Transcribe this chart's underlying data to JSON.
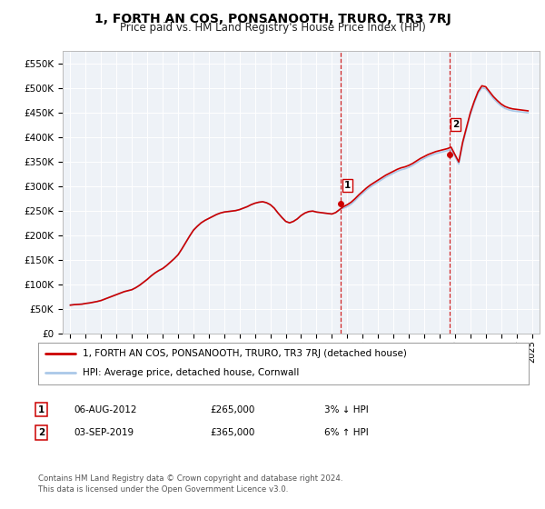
{
  "title": "1, FORTH AN COS, PONSANOOTH, TRURO, TR3 7RJ",
  "subtitle": "Price paid vs. HM Land Registry's House Price Index (HPI)",
  "ylabel_ticks": [
    "£0",
    "£50K",
    "£100K",
    "£150K",
    "£200K",
    "£250K",
    "£300K",
    "£350K",
    "£400K",
    "£450K",
    "£500K",
    "£550K"
  ],
  "ytick_values": [
    0,
    50000,
    100000,
    150000,
    200000,
    250000,
    300000,
    350000,
    400000,
    450000,
    500000,
    550000
  ],
  "ylim": [
    0,
    575000
  ],
  "xlim_start": 1994.5,
  "xlim_end": 2025.5,
  "xticks": [
    1995,
    1996,
    1997,
    1998,
    1999,
    2000,
    2001,
    2002,
    2003,
    2004,
    2005,
    2006,
    2007,
    2008,
    2009,
    2010,
    2011,
    2012,
    2013,
    2014,
    2015,
    2016,
    2017,
    2018,
    2019,
    2020,
    2021,
    2022,
    2023,
    2024,
    2025
  ],
  "hpi_color": "#aac8e8",
  "price_color": "#cc0000",
  "marker_color": "#cc0000",
  "bg_color": "#eef2f7",
  "grid_color": "#ffffff",
  "transaction1_x": 2012.58,
  "transaction1_y": 265000,
  "transaction2_x": 2019.67,
  "transaction2_y": 365000,
  "legend_line1": "1, FORTH AN COS, PONSANOOTH, TRURO, TR3 7RJ (detached house)",
  "legend_line2": "HPI: Average price, detached house, Cornwall",
  "transaction1_date": "06-AUG-2012",
  "transaction1_price": "£265,000",
  "transaction1_hpi": "3% ↓ HPI",
  "transaction2_date": "03-SEP-2019",
  "transaction2_price": "£365,000",
  "transaction2_hpi": "6% ↑ HPI",
  "footer": "Contains HM Land Registry data © Crown copyright and database right 2024.\nThis data is licensed under the Open Government Licence v3.0.",
  "hpi_data_x": [
    1995.0,
    1995.25,
    1995.5,
    1995.75,
    1996.0,
    1996.25,
    1996.5,
    1996.75,
    1997.0,
    1997.25,
    1997.5,
    1997.75,
    1998.0,
    1998.25,
    1998.5,
    1998.75,
    1999.0,
    1999.25,
    1999.5,
    1999.75,
    2000.0,
    2000.25,
    2000.5,
    2000.75,
    2001.0,
    2001.25,
    2001.5,
    2001.75,
    2002.0,
    2002.25,
    2002.5,
    2002.75,
    2003.0,
    2003.25,
    2003.5,
    2003.75,
    2004.0,
    2004.25,
    2004.5,
    2004.75,
    2005.0,
    2005.25,
    2005.5,
    2005.75,
    2006.0,
    2006.25,
    2006.5,
    2006.75,
    2007.0,
    2007.25,
    2007.5,
    2007.75,
    2008.0,
    2008.25,
    2008.5,
    2008.75,
    2009.0,
    2009.25,
    2009.5,
    2009.75,
    2010.0,
    2010.25,
    2010.5,
    2010.75,
    2011.0,
    2011.25,
    2011.5,
    2011.75,
    2012.0,
    2012.25,
    2012.5,
    2012.75,
    2013.0,
    2013.25,
    2013.5,
    2013.75,
    2014.0,
    2014.25,
    2014.5,
    2014.75,
    2015.0,
    2015.25,
    2015.5,
    2015.75,
    2016.0,
    2016.25,
    2016.5,
    2016.75,
    2017.0,
    2017.25,
    2017.5,
    2017.75,
    2018.0,
    2018.25,
    2018.5,
    2018.75,
    2019.0,
    2019.25,
    2019.5,
    2019.75,
    2020.0,
    2020.25,
    2020.5,
    2020.75,
    2021.0,
    2021.25,
    2021.5,
    2021.75,
    2022.0,
    2022.25,
    2022.5,
    2022.75,
    2023.0,
    2023.25,
    2023.5,
    2023.75,
    2024.0,
    2024.25,
    2024.5,
    2024.75
  ],
  "hpi_data_y": [
    58000,
    59000,
    59500,
    60000,
    61000,
    62000,
    63500,
    65000,
    67000,
    70000,
    73000,
    76000,
    79000,
    82000,
    85000,
    87000,
    89000,
    93000,
    98000,
    104000,
    110000,
    117000,
    123000,
    128000,
    132000,
    138000,
    145000,
    152000,
    160000,
    172000,
    185000,
    198000,
    210000,
    218000,
    225000,
    230000,
    234000,
    238000,
    242000,
    245000,
    247000,
    248000,
    249000,
    250000,
    252000,
    255000,
    258000,
    262000,
    265000,
    267000,
    268000,
    266000,
    262000,
    255000,
    245000,
    236000,
    228000,
    225000,
    228000,
    233000,
    240000,
    245000,
    248000,
    249000,
    247000,
    246000,
    245000,
    244000,
    243000,
    246000,
    252000,
    255000,
    258000,
    263000,
    270000,
    278000,
    285000,
    292000,
    298000,
    303000,
    308000,
    313000,
    318000,
    322000,
    326000,
    330000,
    333000,
    335000,
    338000,
    342000,
    347000,
    352000,
    356000,
    360000,
    363000,
    366000,
    368000,
    370000,
    372000,
    375000,
    360000,
    345000,
    385000,
    415000,
    445000,
    468000,
    488000,
    500000,
    498000,
    488000,
    478000,
    470000,
    463000,
    458000,
    455000,
    453000,
    452000,
    451000,
    450000,
    449000
  ],
  "price_data_x": [
    1995.0,
    1995.25,
    1995.5,
    1995.75,
    1996.0,
    1996.25,
    1996.5,
    1996.75,
    1997.0,
    1997.25,
    1997.5,
    1997.75,
    1998.0,
    1998.25,
    1998.5,
    1998.75,
    1999.0,
    1999.25,
    1999.5,
    1999.75,
    2000.0,
    2000.25,
    2000.5,
    2000.75,
    2001.0,
    2001.25,
    2001.5,
    2001.75,
    2002.0,
    2002.25,
    2002.5,
    2002.75,
    2003.0,
    2003.25,
    2003.5,
    2003.75,
    2004.0,
    2004.25,
    2004.5,
    2004.75,
    2005.0,
    2005.25,
    2005.5,
    2005.75,
    2006.0,
    2006.25,
    2006.5,
    2006.75,
    2007.0,
    2007.25,
    2007.5,
    2007.75,
    2008.0,
    2008.25,
    2008.5,
    2008.75,
    2009.0,
    2009.25,
    2009.5,
    2009.75,
    2010.0,
    2010.25,
    2010.5,
    2010.75,
    2011.0,
    2011.25,
    2011.5,
    2011.75,
    2012.0,
    2012.25,
    2012.5,
    2012.75,
    2013.0,
    2013.25,
    2013.5,
    2013.75,
    2014.0,
    2014.25,
    2014.5,
    2014.75,
    2015.0,
    2015.25,
    2015.5,
    2015.75,
    2016.0,
    2016.25,
    2016.5,
    2016.75,
    2017.0,
    2017.25,
    2017.5,
    2017.75,
    2018.0,
    2018.25,
    2018.5,
    2018.75,
    2019.0,
    2019.25,
    2019.5,
    2019.75,
    2020.0,
    2020.25,
    2020.5,
    2020.75,
    2021.0,
    2021.25,
    2021.5,
    2021.75,
    2022.0,
    2022.25,
    2022.5,
    2022.75,
    2023.0,
    2023.25,
    2023.5,
    2023.75,
    2024.0,
    2024.25,
    2024.5,
    2024.75
  ],
  "price_data_y": [
    57500,
    58500,
    59000,
    59500,
    61000,
    62000,
    63500,
    65000,
    67000,
    70000,
    73000,
    76000,
    79000,
    82000,
    85000,
    87000,
    89000,
    93000,
    98000,
    104000,
    110000,
    117000,
    123000,
    128000,
    132000,
    138000,
    145000,
    152000,
    160000,
    172000,
    185000,
    198000,
    210000,
    218000,
    225000,
    230000,
    234000,
    238000,
    242000,
    245000,
    247000,
    248000,
    249000,
    250000,
    252000,
    255000,
    258000,
    262000,
    265000,
    267000,
    268000,
    266000,
    262000,
    255000,
    245000,
    236000,
    228000,
    225000,
    228000,
    233000,
    240000,
    245000,
    248000,
    249000,
    247000,
    246000,
    245000,
    244000,
    243000,
    246000,
    252000,
    258000,
    262000,
    267000,
    274000,
    282000,
    289000,
    296000,
    302000,
    307000,
    312000,
    317000,
    322000,
    326000,
    330000,
    334000,
    337000,
    339000,
    342000,
    346000,
    351000,
    356000,
    360000,
    364000,
    367000,
    370000,
    372000,
    374000,
    376000,
    379000,
    364000,
    349000,
    389000,
    419000,
    449000,
    472000,
    492000,
    504000,
    502000,
    492000,
    482000,
    474000,
    467000,
    462000,
    459000,
    457000,
    456000,
    455000,
    454000,
    453000
  ]
}
